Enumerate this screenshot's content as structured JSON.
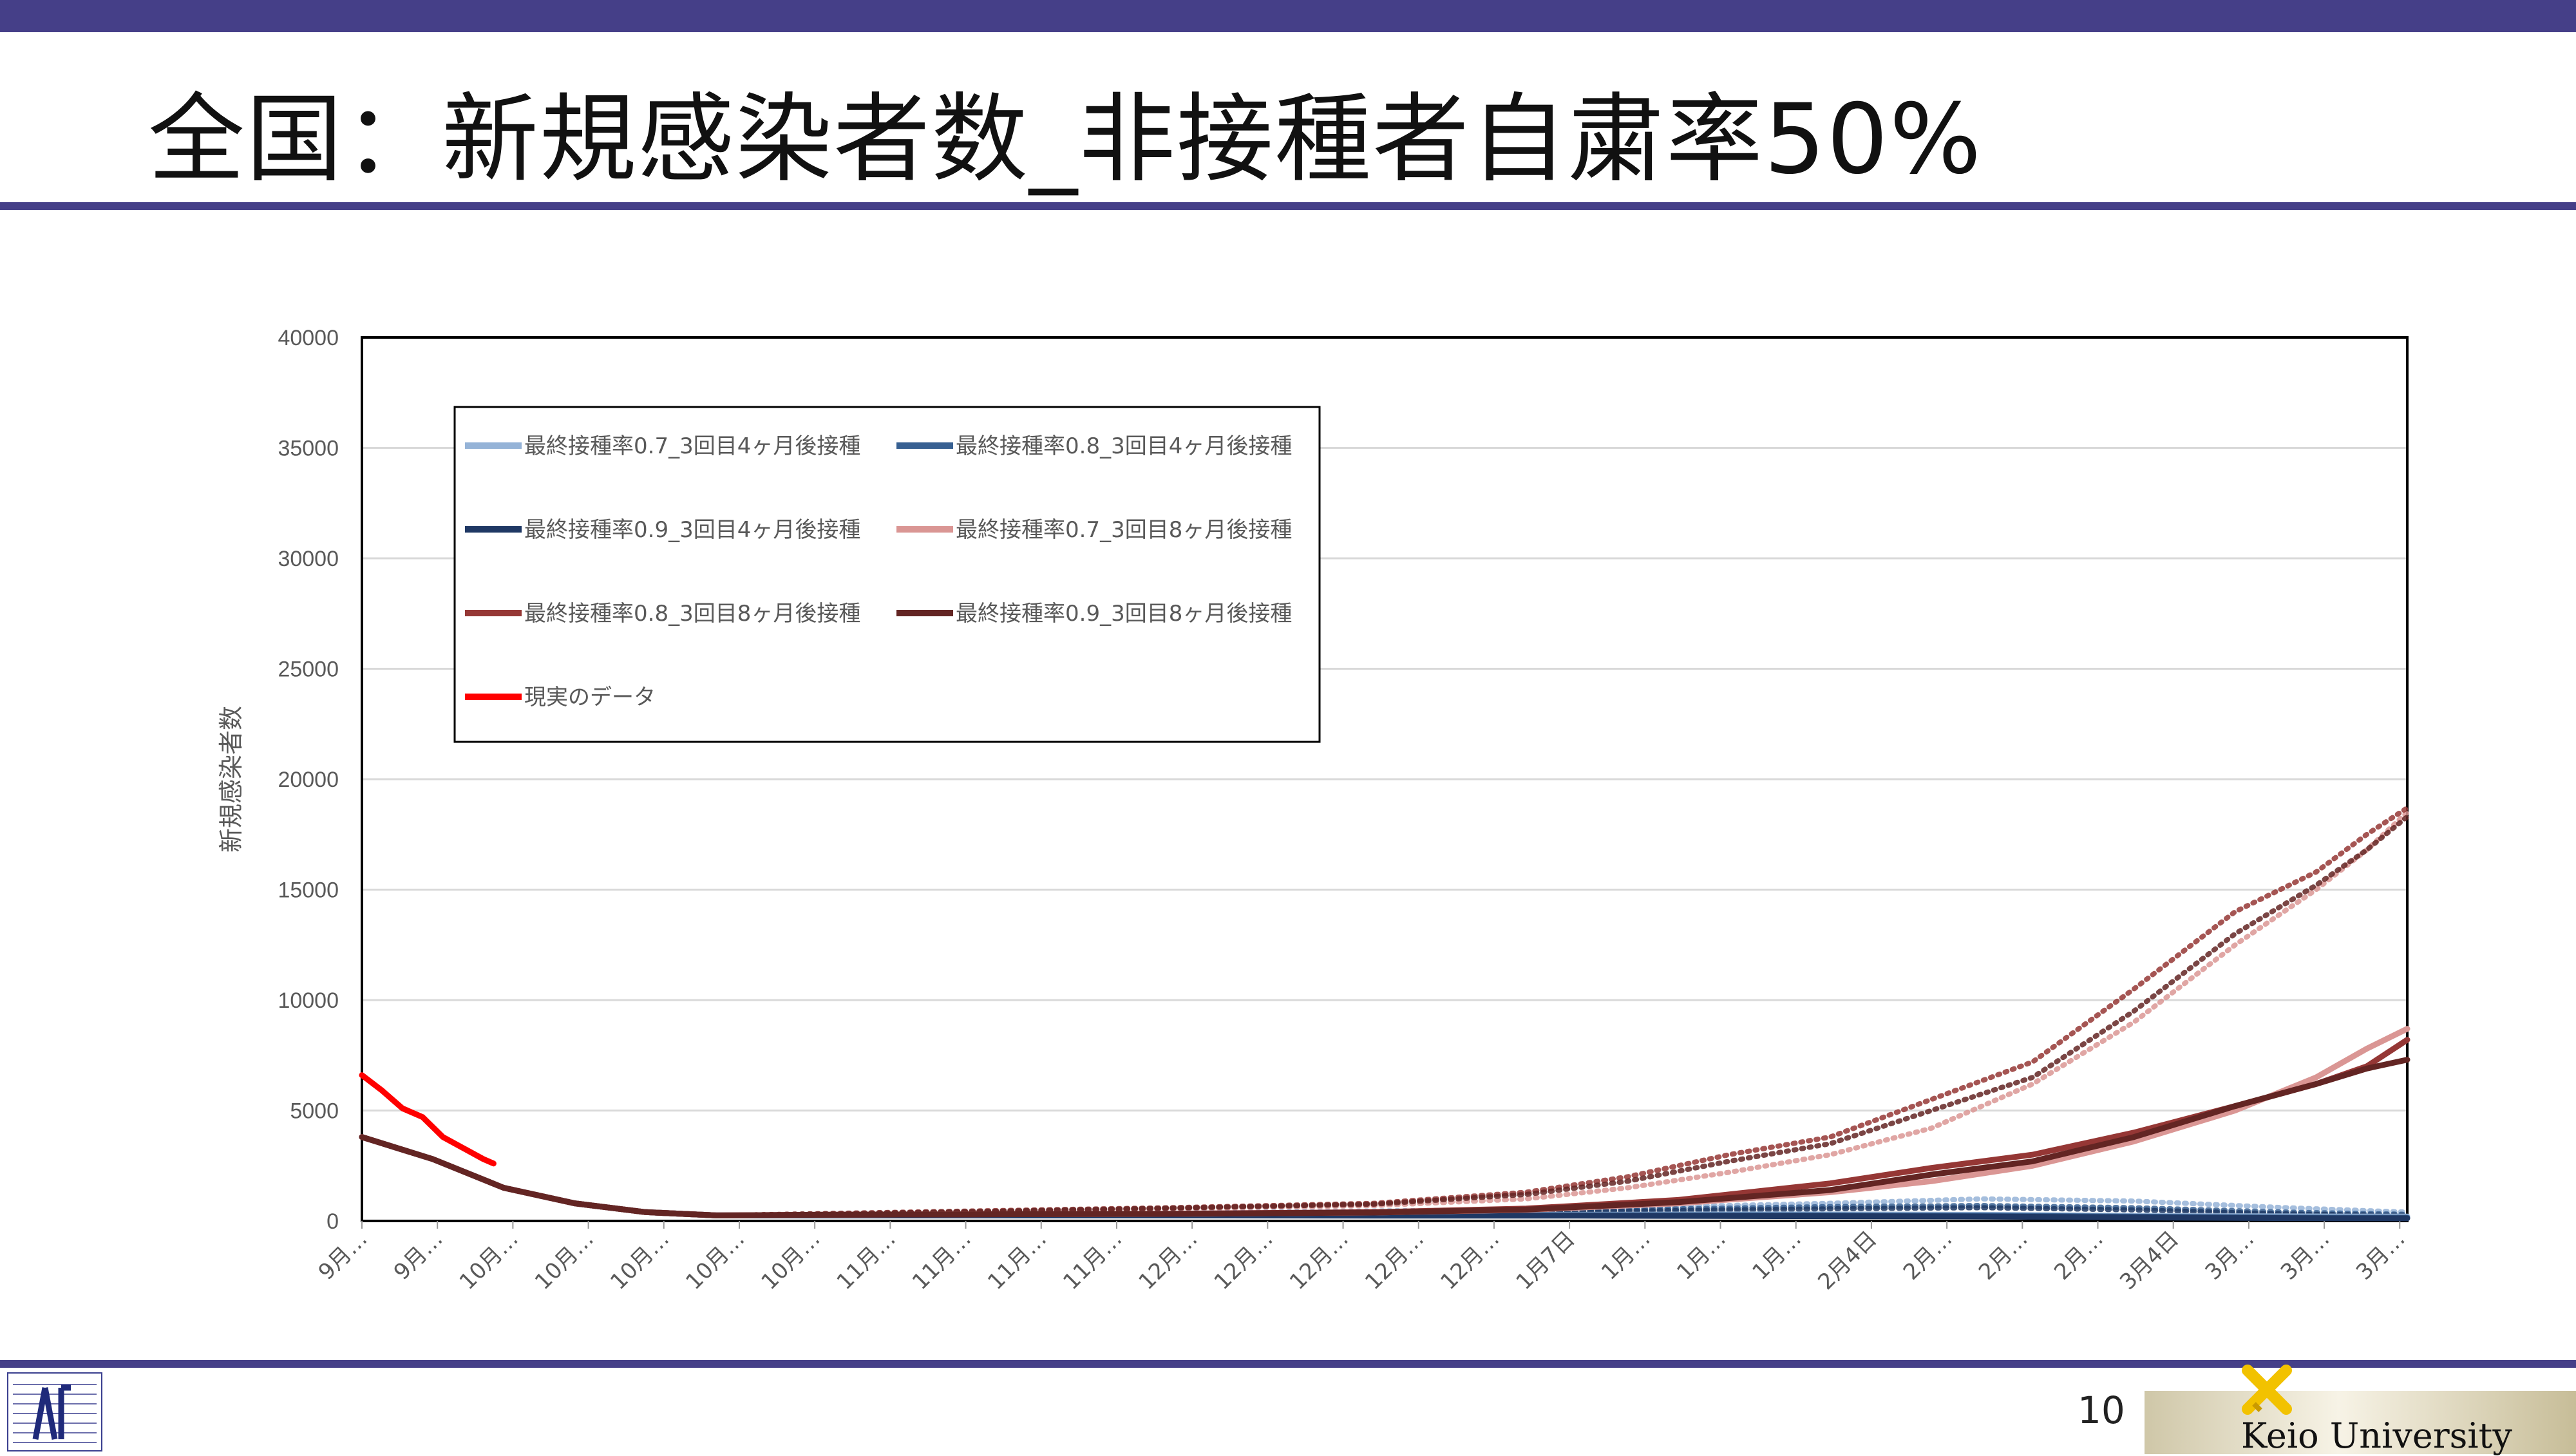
{
  "slide": {
    "title": "全国：新規感染者数_非接種者自粛率50%",
    "page_number": "10",
    "university_label": "Keio University"
  },
  "colors": {
    "accent_bar": "#453f88"
  },
  "chart_data": {
    "type": "line",
    "title": "",
    "ylabel": "新規感染者数",
    "xlabel": "",
    "ylim": [
      0,
      40000
    ],
    "yticks": [
      0,
      5000,
      10000,
      15000,
      20000,
      25000,
      30000,
      35000,
      40000
    ],
    "grid": true,
    "legend_position": "top-left",
    "x_tick_labels": [
      "9月…",
      "9月…",
      "10月…",
      "10月…",
      "10月…",
      "10月…",
      "10月…",
      "11月…",
      "11月…",
      "11月…",
      "11月…",
      "12月…",
      "12月…",
      "12月…",
      "12月…",
      "12月…",
      "1月7日",
      "1月…",
      "1月…",
      "1月…",
      "2月4日",
      "2月…",
      "2月…",
      "2月…",
      "3月4日",
      "3月…",
      "3月…",
      "3月…"
    ],
    "x_days": 202,
    "series": [
      {
        "name": "最終接種率0.7_3回目4ヶ月後接種",
        "color": "#95b3d7",
        "style": "solid",
        "points": [
          [
            0,
            3800
          ],
          [
            7,
            2800
          ],
          [
            14,
            1500
          ],
          [
            21,
            800
          ],
          [
            28,
            400
          ],
          [
            35,
            250
          ],
          [
            45,
            250
          ],
          [
            60,
            250
          ],
          [
            80,
            250
          ],
          [
            100,
            260
          ],
          [
            120,
            280
          ],
          [
            140,
            300
          ],
          [
            160,
            280
          ],
          [
            180,
            220
          ],
          [
            195,
            200
          ],
          [
            202,
            200
          ]
        ]
      },
      {
        "name": "最終接種率0.8_3回目4ヶ月後接種",
        "color": "#376092",
        "style": "solid",
        "points": [
          [
            0,
            3800
          ],
          [
            7,
            2800
          ],
          [
            14,
            1500
          ],
          [
            21,
            800
          ],
          [
            28,
            400
          ],
          [
            35,
            250
          ],
          [
            45,
            250
          ],
          [
            60,
            250
          ],
          [
            80,
            250
          ],
          [
            100,
            250
          ],
          [
            120,
            260
          ],
          [
            140,
            260
          ],
          [
            160,
            240
          ],
          [
            180,
            180
          ],
          [
            195,
            150
          ],
          [
            202,
            150
          ]
        ]
      },
      {
        "name": "最終接種率0.9_3回目4ヶ月後接種",
        "color": "#1f3864",
        "style": "solid",
        "points": [
          [
            0,
            3800
          ],
          [
            7,
            2800
          ],
          [
            14,
            1500
          ],
          [
            21,
            800
          ],
          [
            28,
            400
          ],
          [
            35,
            250
          ],
          [
            45,
            250
          ],
          [
            60,
            250
          ],
          [
            80,
            250
          ],
          [
            100,
            240
          ],
          [
            120,
            240
          ],
          [
            140,
            220
          ],
          [
            160,
            200
          ],
          [
            180,
            150
          ],
          [
            195,
            120
          ],
          [
            202,
            120
          ]
        ]
      },
      {
        "name": "最終接種率0.7_3回目8ヶ月後接種",
        "color": "#da9694",
        "style": "solid",
        "points": [
          [
            0,
            3800
          ],
          [
            7,
            2800
          ],
          [
            14,
            1500
          ],
          [
            21,
            800
          ],
          [
            28,
            400
          ],
          [
            35,
            250
          ],
          [
            45,
            280
          ],
          [
            60,
            300
          ],
          [
            80,
            320
          ],
          [
            100,
            380
          ],
          [
            115,
            500
          ],
          [
            130,
            800
          ],
          [
            145,
            1300
          ],
          [
            155,
            1800
          ],
          [
            165,
            2500
          ],
          [
            175,
            3600
          ],
          [
            185,
            5000
          ],
          [
            193,
            6500
          ],
          [
            198,
            7800
          ],
          [
            202,
            8700
          ]
        ]
      },
      {
        "name": "最終接種率0.8_3回目8ヶ月後接種",
        "color": "#953735",
        "style": "solid",
        "points": [
          [
            0,
            3800
          ],
          [
            7,
            2800
          ],
          [
            14,
            1500
          ],
          [
            21,
            800
          ],
          [
            28,
            400
          ],
          [
            35,
            250
          ],
          [
            45,
            280
          ],
          [
            60,
            300
          ],
          [
            80,
            330
          ],
          [
            100,
            400
          ],
          [
            115,
            560
          ],
          [
            130,
            950
          ],
          [
            145,
            1700
          ],
          [
            155,
            2400
          ],
          [
            165,
            3000
          ],
          [
            175,
            4000
          ],
          [
            185,
            5200
          ],
          [
            193,
            6200
          ],
          [
            198,
            7000
          ],
          [
            202,
            8200
          ]
        ]
      },
      {
        "name": "最終接種率0.9_3回目8ヶ月後接種",
        "color": "#632523",
        "style": "solid",
        "points": [
          [
            0,
            3800
          ],
          [
            7,
            2800
          ],
          [
            14,
            1500
          ],
          [
            21,
            800
          ],
          [
            28,
            400
          ],
          [
            35,
            250
          ],
          [
            45,
            280
          ],
          [
            60,
            300
          ],
          [
            80,
            320
          ],
          [
            100,
            380
          ],
          [
            115,
            520
          ],
          [
            130,
            850
          ],
          [
            145,
            1400
          ],
          [
            155,
            2100
          ],
          [
            165,
            2700
          ],
          [
            175,
            3800
          ],
          [
            185,
            5200
          ],
          [
            193,
            6200
          ],
          [
            198,
            6900
          ],
          [
            202,
            7300
          ]
        ]
      },
      {
        "name": "現実のデータ",
        "color": "#ff0000",
        "style": "solid",
        "points": [
          [
            0,
            6600
          ],
          [
            2,
            5900
          ],
          [
            4,
            5100
          ],
          [
            6,
            4700
          ],
          [
            8,
            3800
          ],
          [
            10,
            3300
          ],
          [
            12,
            2800
          ],
          [
            13,
            2600
          ]
        ]
      },
      {
        "name": "",
        "color": "#da9694",
        "style": "dotted",
        "legend": false,
        "points": [
          [
            35,
            250
          ],
          [
            60,
            400
          ],
          [
            80,
            550
          ],
          [
            100,
            700
          ],
          [
            115,
            1000
          ],
          [
            125,
            1500
          ],
          [
            135,
            2200
          ],
          [
            145,
            3000
          ],
          [
            155,
            4200
          ],
          [
            165,
            6200
          ],
          [
            175,
            9000
          ],
          [
            185,
            12500
          ],
          [
            193,
            15000
          ],
          [
            198,
            16800
          ],
          [
            202,
            18500
          ]
        ]
      },
      {
        "name": "",
        "color": "#953735",
        "style": "dotted",
        "legend": false,
        "points": [
          [
            35,
            250
          ],
          [
            60,
            450
          ],
          [
            80,
            600
          ],
          [
            100,
            800
          ],
          [
            115,
            1300
          ],
          [
            125,
            2000
          ],
          [
            135,
            3000
          ],
          [
            145,
            3800
          ],
          [
            155,
            5500
          ],
          [
            165,
            7200
          ],
          [
            175,
            10500
          ],
          [
            185,
            14000
          ],
          [
            193,
            15800
          ],
          [
            198,
            17500
          ],
          [
            202,
            18700
          ]
        ]
      },
      {
        "name": "",
        "color": "#632523",
        "style": "dotted",
        "legend": false,
        "points": [
          [
            35,
            250
          ],
          [
            60,
            420
          ],
          [
            80,
            580
          ],
          [
            100,
            760
          ],
          [
            115,
            1200
          ],
          [
            125,
            1800
          ],
          [
            135,
            2700
          ],
          [
            145,
            3500
          ],
          [
            155,
            5000
          ],
          [
            165,
            6500
          ],
          [
            175,
            9500
          ],
          [
            185,
            13000
          ],
          [
            193,
            15200
          ],
          [
            198,
            16800
          ],
          [
            202,
            18300
          ]
        ]
      },
      {
        "name": "",
        "color": "#95b3d7",
        "style": "dotted",
        "legend": false,
        "points": [
          [
            35,
            250
          ],
          [
            80,
            350
          ],
          [
            120,
            550
          ],
          [
            145,
            800
          ],
          [
            160,
            1000
          ],
          [
            175,
            900
          ],
          [
            190,
            600
          ],
          [
            202,
            400
          ]
        ]
      },
      {
        "name": "",
        "color": "#376092",
        "style": "dotted",
        "legend": false,
        "points": [
          [
            35,
            250
          ],
          [
            80,
            320
          ],
          [
            120,
            480
          ],
          [
            145,
            650
          ],
          [
            160,
            700
          ],
          [
            175,
            600
          ],
          [
            190,
            400
          ],
          [
            202,
            300
          ]
        ]
      },
      {
        "name": "",
        "color": "#1f3864",
        "style": "dotted",
        "legend": false,
        "points": [
          [
            35,
            250
          ],
          [
            80,
            300
          ],
          [
            120,
            420
          ],
          [
            145,
            550
          ],
          [
            160,
            600
          ],
          [
            175,
            500
          ],
          [
            190,
            320
          ],
          [
            202,
            250
          ]
        ]
      }
    ]
  }
}
